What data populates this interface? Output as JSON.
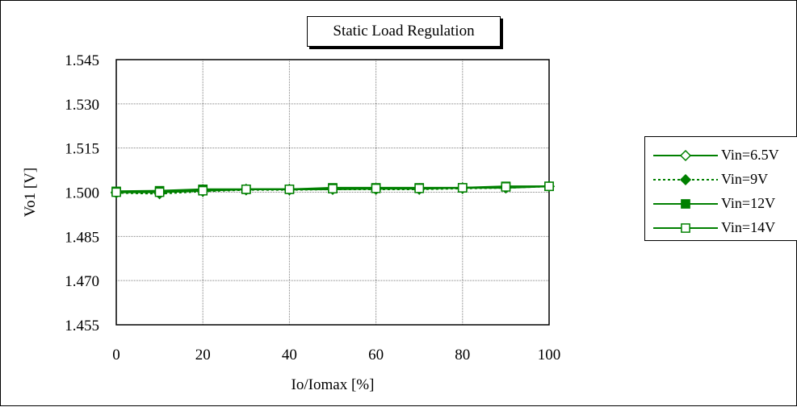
{
  "chart_data": {
    "type": "line",
    "title": "Static Load Regulation",
    "xlabel": "Io/Iomax [%]",
    "ylabel": "Vo1 [V]",
    "xlim": [
      0,
      100
    ],
    "ylim": [
      1.455,
      1.545
    ],
    "x_ticks": [
      "0",
      "20",
      "40",
      "60",
      "80",
      "100"
    ],
    "y_ticks": [
      "1.455",
      "1.470",
      "1.485",
      "1.500",
      "1.515",
      "1.530",
      "1.545"
    ],
    "grid": true,
    "legend_position": "right",
    "x": [
      0,
      10,
      20,
      30,
      40,
      50,
      60,
      70,
      80,
      90,
      100
    ],
    "series": [
      {
        "name": "Vin=6.5V",
        "marker": "open-diamond",
        "line": "solid",
        "values": [
          1.5,
          1.5,
          1.5005,
          1.501,
          1.501,
          1.501,
          1.5012,
          1.5012,
          1.5015,
          1.5015,
          1.502
        ]
      },
      {
        "name": "Vin=9V",
        "marker": "filled-diamond",
        "line": "dotted",
        "values": [
          1.4998,
          1.4995,
          1.5003,
          1.5008,
          1.5008,
          1.501,
          1.501,
          1.501,
          1.5013,
          1.5015,
          1.502
        ]
      },
      {
        "name": "Vin=12V",
        "marker": "filled-square",
        "line": "solid",
        "values": [
          1.5003,
          1.5005,
          1.501,
          1.501,
          1.501,
          1.5015,
          1.5015,
          1.5015,
          1.5015,
          1.502,
          1.502
        ]
      },
      {
        "name": "Vin=14V",
        "marker": "open-square",
        "line": "solid",
        "values": [
          1.5,
          1.5,
          1.5005,
          1.501,
          1.501,
          1.5012,
          1.5013,
          1.5013,
          1.5015,
          1.5018,
          1.502
        ]
      }
    ],
    "colors": {
      "series": "#008000",
      "grid": "#808080",
      "axis": "#000000"
    }
  }
}
